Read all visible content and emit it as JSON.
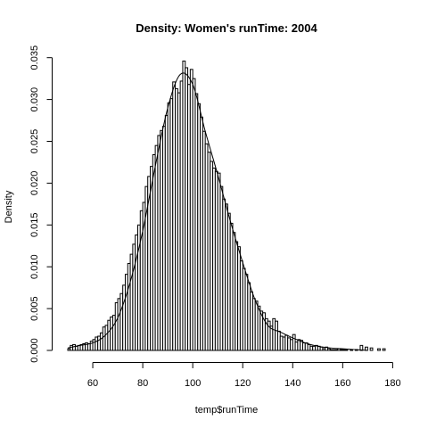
{
  "chart_data": {
    "type": "bar",
    "title": "Density: Women's runTime:  2004",
    "xlabel": "temp$runTime",
    "ylabel": "Density",
    "xlim": [
      45,
      182
    ],
    "ylim": [
      0,
      0.0355
    ],
    "x_ticks": [
      60,
      80,
      100,
      120,
      140,
      160,
      180
    ],
    "x_tick_labels": [
      "60",
      "80",
      "100",
      "120",
      "140",
      "160",
      "180"
    ],
    "y_ticks": [
      0.0,
      0.005,
      0.01,
      0.015,
      0.02,
      0.025,
      0.03,
      0.035
    ],
    "y_tick_labels": [
      "0.000",
      "0.005",
      "0.010",
      "0.015",
      "0.020",
      "0.025",
      "0.030",
      "0.035"
    ],
    "bin_width": 1,
    "bin_start": 50,
    "bin_counts": [
      0.0002,
      0.0006,
      0.0007,
      0.0005,
      0.0006,
      0.0007,
      0.0008,
      0.0009,
      0.0008,
      0.0011,
      0.0013,
      0.0016,
      0.0017,
      0.0021,
      0.0028,
      0.003,
      0.0036,
      0.004,
      0.0042,
      0.0057,
      0.0062,
      0.0068,
      0.0078,
      0.0091,
      0.0104,
      0.0115,
      0.0127,
      0.0138,
      0.015,
      0.0167,
      0.0177,
      0.0196,
      0.0208,
      0.022,
      0.0234,
      0.0245,
      0.0257,
      0.0263,
      0.0268,
      0.0281,
      0.0296,
      0.0301,
      0.0321,
      0.0313,
      0.0308,
      0.0322,
      0.0346,
      0.0338,
      0.0318,
      0.0336,
      0.0325,
      0.0307,
      0.0295,
      0.0279,
      0.0262,
      0.0247,
      0.0237,
      0.0226,
      0.0218,
      0.0214,
      0.0212,
      0.0196,
      0.0181,
      0.0175,
      0.0164,
      0.0152,
      0.0141,
      0.013,
      0.0124,
      0.0107,
      0.0098,
      0.0091,
      0.0081,
      0.007,
      0.0062,
      0.0059,
      0.0053,
      0.0047,
      0.0045,
      0.0038,
      0.0035,
      0.0029,
      0.0038,
      0.0035,
      0.0023,
      0.0017,
      0.0016,
      0.0018,
      0.0015,
      0.0013,
      0.0019,
      0.001,
      0.0013,
      0.0012,
      0.0009,
      0.0009,
      0.0007,
      0.0005,
      0.0005,
      0.0006,
      0.0005,
      0.0004,
      0.0002,
      0.0004,
      0.0002,
      0.0001,
      0.0001,
      0.0001,
      0.0002,
      0.0001,
      0.0001,
      0.0001,
      0.0,
      0.0001,
      0.0,
      0.0001,
      0.0,
      0.0006,
      0.0,
      0.0004,
      0.0,
      0.0003,
      0.0,
      0.0,
      0.0002,
      0.0,
      0.0002,
      0.0,
      0.0,
      0.0
    ],
    "density_curve": {
      "x": [
        50,
        55,
        60,
        65,
        70,
        75,
        80,
        85,
        90,
        95,
        100,
        105,
        110,
        115,
        120,
        125,
        130,
        135,
        140,
        145,
        150,
        155,
        160,
        165,
        170
      ],
      "y": [
        0.0003,
        0.0006,
        0.0009,
        0.0018,
        0.0039,
        0.0082,
        0.0143,
        0.022,
        0.029,
        0.033,
        0.0318,
        0.0262,
        0.021,
        0.0155,
        0.0105,
        0.006,
        0.003,
        0.0022,
        0.0015,
        0.0009,
        0.0005,
        0.0003,
        0.0002,
        0.0001,
        0.0
      ]
    }
  }
}
